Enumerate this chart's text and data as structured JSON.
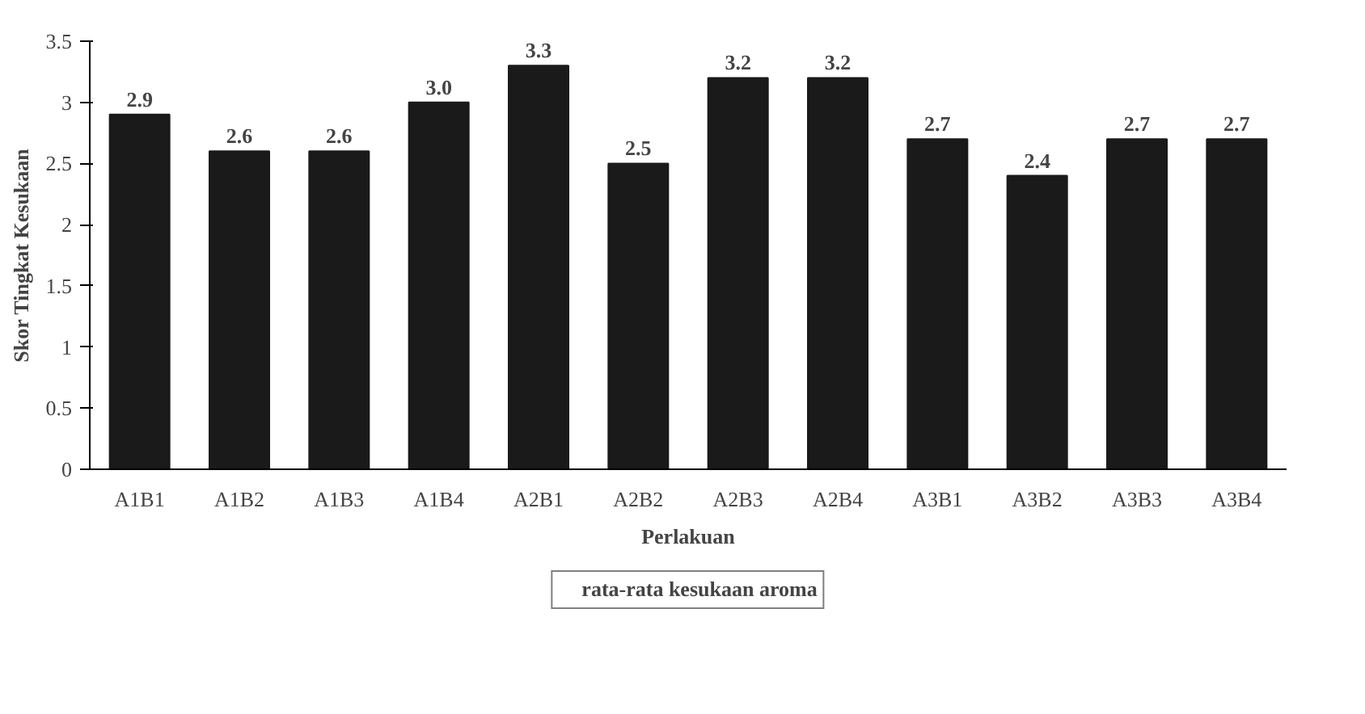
{
  "chart_data": {
    "type": "bar",
    "xlabel": "Perlakuan",
    "ylabel": "Skor Tingkat Kesukaan",
    "categories": [
      "A1B1",
      "A1B2",
      "A1B3",
      "A1B4",
      "A2B1",
      "A2B2",
      "A2B3",
      "A2B4",
      "A3B1",
      "A3B2",
      "A3B3",
      "A3B4"
    ],
    "series": [
      {
        "name": "rata-rata kesukaan aroma",
        "color": "#1a1a1a",
        "values": [
          2.9,
          2.6,
          2.6,
          3.0,
          3.3,
          2.5,
          3.2,
          3.2,
          2.7,
          2.4,
          2.7,
          2.7
        ],
        "value_labels": [
          "2.9",
          "2.6",
          "2.6",
          "3.0",
          "3.3",
          "2.5",
          "3.2",
          "3.2",
          "2.7",
          "2.4",
          "2.7",
          "2.7"
        ]
      }
    ],
    "ylim": [
      0,
      3.5
    ],
    "yticks": [
      0,
      0.5,
      1,
      1.5,
      2,
      2.5,
      3,
      3.5
    ],
    "grid": false,
    "legend": "bottom"
  }
}
